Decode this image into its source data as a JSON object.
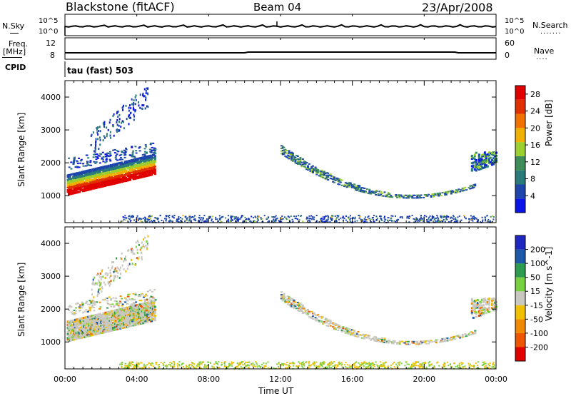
{
  "header": {
    "station": "Blackstone (fitACF)",
    "beam": "Beam 04",
    "date": "23/Apr/2008"
  },
  "strip_labels": {
    "nsky": "N.Sky",
    "nsearch": "N.Search",
    "freq": "Freq.",
    "freq_unit": "[MHz]",
    "nave": "Nave",
    "cpid": "CPID",
    "mode": "tau (fast) 503"
  },
  "strip_ticks": {
    "noise_left": [
      "10^5",
      "10^0"
    ],
    "noise_right": [
      "10^5",
      "10^0"
    ],
    "freq_left": [
      "12",
      "8"
    ],
    "nave_right": [
      "60",
      "0"
    ]
  },
  "colors": {
    "power_scale": [
      "#0a14e6",
      "#1e46aa",
      "#2a7a7a",
      "#3e8c5a",
      "#9ccf2e",
      "#f0b000",
      "#f07000",
      "#e03000",
      "#e00000"
    ],
    "velocity_scale": [
      "#e00000",
      "#ee5500",
      "#f08800",
      "#f0c000",
      "#c8c8c0",
      "#78d040",
      "#2e9c50",
      "#1e58a8",
      "#1e28c0"
    ]
  },
  "chart_data": [
    {
      "type": "heatmap",
      "title": "",
      "xlabel": "",
      "ylabel": "Slant Range [km]",
      "x_ticks": [
        "00:00",
        "04:00",
        "08:00",
        "12:00",
        "16:00",
        "20:00",
        "00:00"
      ],
      "xlim_hours": [
        0,
        24
      ],
      "ylim": [
        180,
        4500
      ],
      "y_ticks": [
        1000,
        2000,
        3000,
        4000
      ],
      "colorbar": {
        "label": "Power [dB]",
        "ticks": [
          4,
          8,
          12,
          16,
          20,
          24,
          28
        ],
        "range": [
          0,
          30
        ]
      },
      "features": [
        {
          "name": "ionospheric band",
          "t": [
            0.1,
            5.0
          ],
          "range_km": [
            1000,
            2350
          ]
        },
        {
          "name": "high-range patches",
          "t": [
            1.5,
            4.5
          ],
          "range_km": [
            2500,
            4400
          ]
        },
        {
          "name": "ground scatter arc",
          "t": [
            12.0,
            23.0
          ],
          "range_km": [
            900,
            2400
          ]
        },
        {
          "name": "late echo",
          "t": [
            22.7,
            24.0
          ],
          "range_km": [
            1700,
            2400
          ]
        },
        {
          "name": "near-range echoes",
          "t": [
            3.0,
            24.0
          ],
          "range_km": [
            180,
            450
          ]
        }
      ]
    },
    {
      "type": "heatmap",
      "title": "",
      "xlabel": "Time UT",
      "ylabel": "Slant Range [km]",
      "x_ticks": [
        "00:00",
        "04:00",
        "08:00",
        "12:00",
        "16:00",
        "20:00",
        "00:00"
      ],
      "xlim_hours": [
        0,
        24
      ],
      "ylim": [
        180,
        4500
      ],
      "y_ticks": [
        1000,
        2000,
        3000,
        4000
      ],
      "colorbar": {
        "label": "Velocity [m s^-1]",
        "ticks": [
          "200",
          "100",
          "50",
          "15",
          "-15",
          "-50",
          "-100",
          "-200"
        ]
      },
      "features": [
        {
          "name": "ionospheric band (mostly grey/ground scatter)",
          "t": [
            0.1,
            5.0
          ],
          "range_km": [
            1000,
            2350
          ]
        },
        {
          "name": "high-range patches",
          "t": [
            1.5,
            4.5
          ],
          "range_km": [
            2500,
            4400
          ]
        },
        {
          "name": "ground scatter arc",
          "t": [
            12.0,
            23.0
          ],
          "range_km": [
            900,
            2400
          ]
        },
        {
          "name": "late echo",
          "t": [
            22.7,
            24.0
          ],
          "range_km": [
            1700,
            2400
          ]
        },
        {
          "name": "near-range echoes",
          "t": [
            3.0,
            24.0
          ],
          "range_km": [
            180,
            450
          ]
        }
      ]
    }
  ]
}
